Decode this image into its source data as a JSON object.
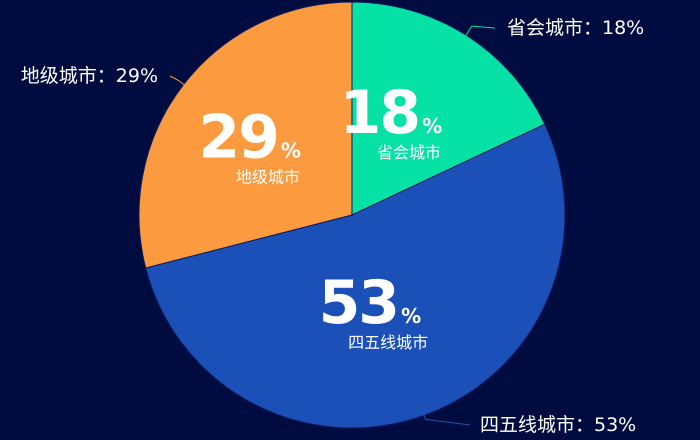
{
  "chart_data": {
    "type": "pie",
    "slices": [
      {
        "name": "省会城市",
        "value": 18,
        "color": "#06e2a5",
        "outer_label": "省会城市：18%",
        "inner_value": "18",
        "inner_sign": "%",
        "label_side": "right-top"
      },
      {
        "name": "四五线城市",
        "value": 53,
        "color": "#1a50b8",
        "outer_label": "四五线城市：53%",
        "inner_value": "53",
        "inner_sign": "%",
        "label_side": "right-bottom"
      },
      {
        "name": "地级城市",
        "value": 29,
        "color": "#fb9a3e",
        "outer_label": "地级城市：29%",
        "inner_value": "29",
        "inner_sign": "%",
        "label_side": "left-top"
      }
    ],
    "start_angle": "top",
    "direction": "clockwise"
  },
  "colors": {
    "background": "#000c3f"
  }
}
